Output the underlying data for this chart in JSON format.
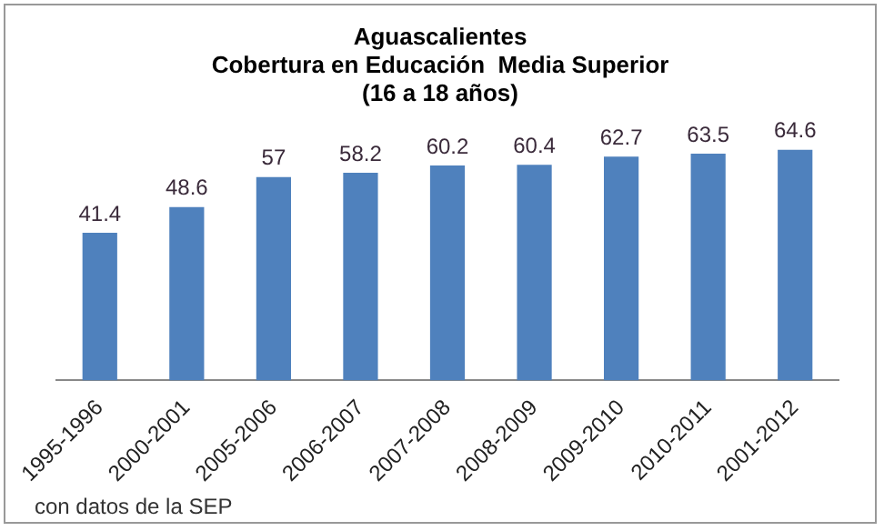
{
  "chart_data": {
    "type": "bar",
    "title": [
      "Aguascalientes",
      "Cobertura en Educación  Media Superior",
      "(16 a 18 años)"
    ],
    "categories": [
      "1995-1996",
      "2000-2001",
      "2005-2006",
      "2006-2007",
      "2007-2008",
      "2008-2009",
      "2009-2010",
      "2010-2011",
      "2001-2012"
    ],
    "values": [
      41.4,
      48.6,
      57,
      58.2,
      60.2,
      60.4,
      62.7,
      63.5,
      64.6
    ],
    "color": "#4f81bd",
    "data_labels": true,
    "grid": false,
    "legend": false,
    "tick_labels": "x",
    "annotations": [
      "con datos de la SEP"
    ]
  }
}
